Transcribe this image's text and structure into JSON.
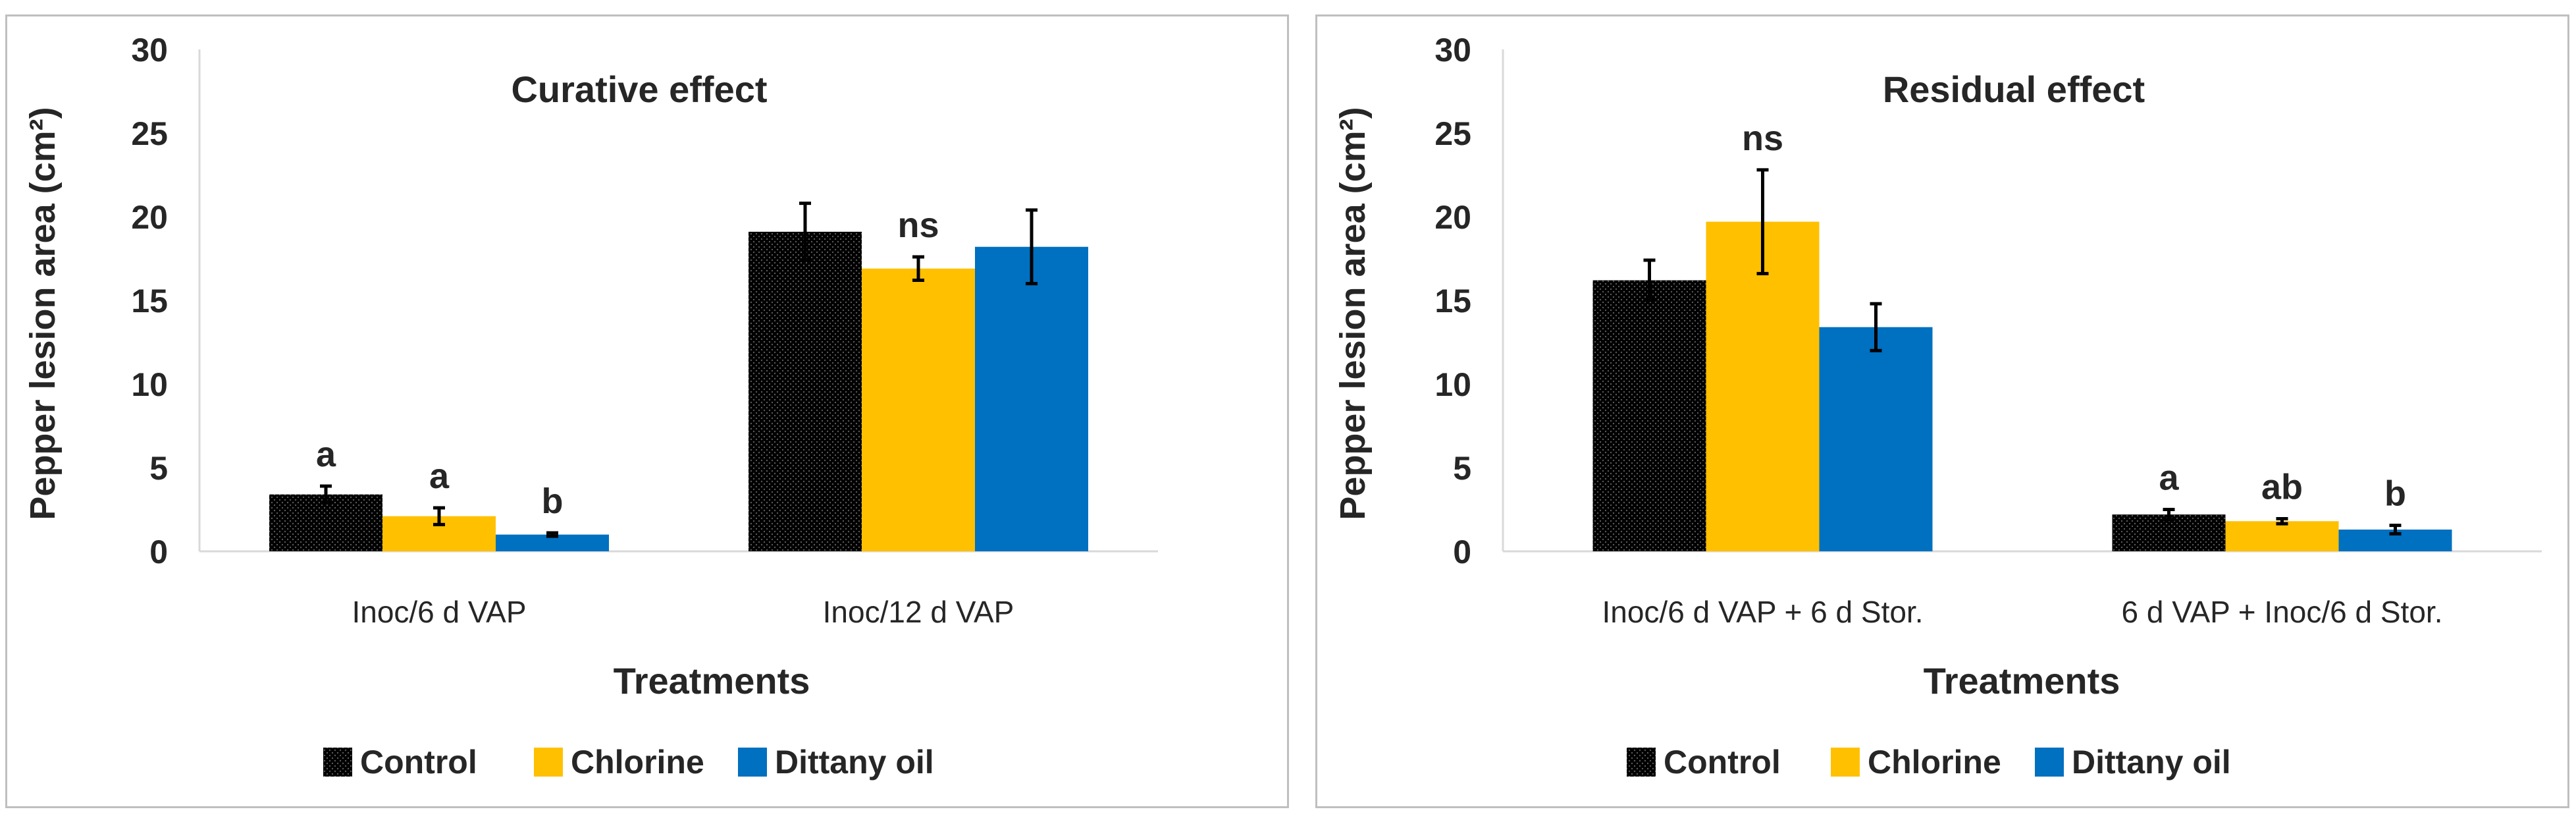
{
  "chart_data": [
    {
      "type": "bar",
      "title": "Curative effect",
      "xlabel": "Treatments",
      "ylabel": "Pepper lesion area (cm²)",
      "ylim": [
        0,
        30
      ],
      "yticks": [
        0,
        5,
        10,
        15,
        20,
        25,
        30
      ],
      "grid": false,
      "legend_position": "bottom",
      "categories": [
        "Inoc/6 d VAP",
        "Inoc/12 d VAP"
      ],
      "series": [
        {
          "name": "Control",
          "color": "#000000",
          "pattern": "dotted",
          "values": [
            3.4,
            19.1
          ],
          "errors": [
            0.5,
            1.7
          ]
        },
        {
          "name": "Chlorine",
          "color": "#FFC000",
          "values": [
            2.1,
            16.9
          ],
          "errors": [
            0.5,
            0.7
          ]
        },
        {
          "name": "Dittany oil",
          "color": "#0070C0",
          "values": [
            1.0,
            18.2
          ],
          "errors": [
            0.1,
            2.2
          ]
        }
      ],
      "annotations": [
        {
          "category": 0,
          "series": 0,
          "text": "a"
        },
        {
          "category": 0,
          "series": 1,
          "text": "a"
        },
        {
          "category": 0,
          "series": 2,
          "text": "b"
        },
        {
          "category": 1,
          "series": 1,
          "text": "ns"
        }
      ]
    },
    {
      "type": "bar",
      "title": "Residual effect",
      "xlabel": "Treatments",
      "ylabel": "Pepper lesion area (cm²)",
      "ylim": [
        0,
        30
      ],
      "yticks": [
        0,
        5,
        10,
        15,
        20,
        25,
        30
      ],
      "grid": false,
      "legend_position": "bottom",
      "categories": [
        "Inoc/6 d VAP + 6 d Stor.",
        "6 d VAP + Inoc/6 d Stor."
      ],
      "series": [
        {
          "name": "Control",
          "color": "#000000",
          "pattern": "dotted",
          "values": [
            16.2,
            2.2
          ],
          "errors": [
            1.2,
            0.3
          ]
        },
        {
          "name": "Chlorine",
          "color": "#FFC000",
          "values": [
            19.7,
            1.8
          ],
          "errors": [
            3.1,
            0.15
          ]
        },
        {
          "name": "Dittany oil",
          "color": "#0070C0",
          "values": [
            13.4,
            1.3
          ],
          "errors": [
            1.4,
            0.25
          ]
        }
      ],
      "annotations": [
        {
          "category": 0,
          "series": 1,
          "text": "ns"
        },
        {
          "category": 1,
          "series": 0,
          "text": "a"
        },
        {
          "category": 1,
          "series": 1,
          "text": "ab"
        },
        {
          "category": 1,
          "series": 2,
          "text": "b"
        }
      ]
    }
  ]
}
